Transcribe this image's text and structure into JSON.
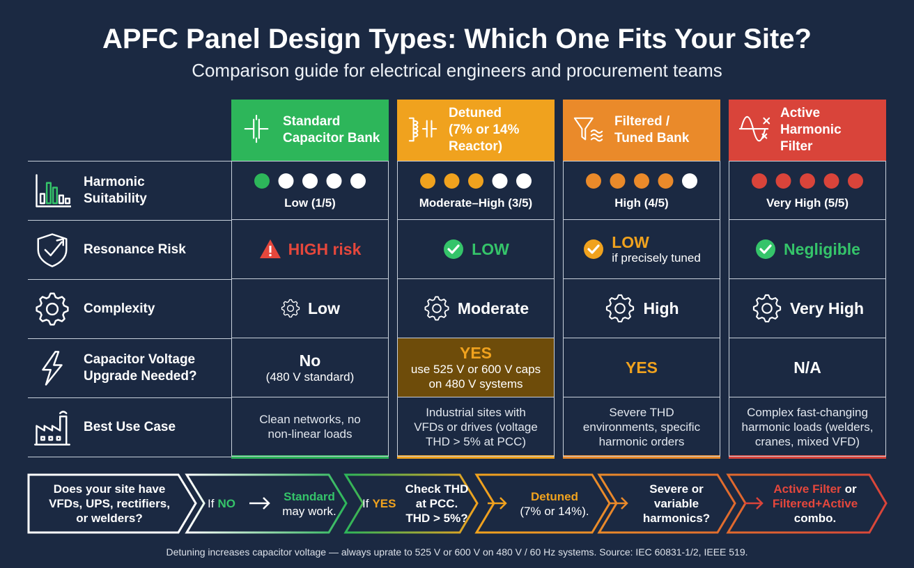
{
  "header": {
    "title": "APFC Panel Design Types: Which One Fits Your Site?",
    "subtitle": "Comparison guide for electrical engineers and procurement teams"
  },
  "columns": [
    {
      "lines": [
        "Standard",
        "Capacitor Bank"
      ],
      "icon": "capacitor",
      "color": "#2db65a"
    },
    {
      "lines": [
        "Detuned",
        "(7% or 14%",
        "Reactor)"
      ],
      "icon": "reactor",
      "color": "#f0a21e"
    },
    {
      "lines": [
        "Filtered /",
        "Tuned Bank"
      ],
      "icon": "funnel",
      "color": "#ea8a2a"
    },
    {
      "lines": [
        "Active",
        "Harmonic",
        "Filter"
      ],
      "icon": "wave",
      "color": "#d9443a"
    }
  ],
  "rows": [
    {
      "lines": [
        "Harmonic",
        "Suitability"
      ],
      "icon": "bars",
      "cells": [
        {
          "filled": 1,
          "total": 5,
          "label": "Low (1/5)"
        },
        {
          "filled": 3,
          "total": 5,
          "label": "Moderate–High (3/5)"
        },
        {
          "filled": 4,
          "total": 5,
          "label": "High (4/5)"
        },
        {
          "filled": 5,
          "total": 5,
          "label": "Very High (5/5)"
        }
      ]
    },
    {
      "lines": [
        "Resonance Risk"
      ],
      "icon": "shield",
      "cells": [
        {
          "text": "HIGH risk",
          "icon": "warning",
          "color": "#e5473c"
        },
        {
          "text": "LOW",
          "icon": "check",
          "color": "#35c46a"
        },
        {
          "text": "LOW",
          "note": [
            "if precisely tuned"
          ],
          "icon": "check",
          "color": "#f0a21e"
        },
        {
          "text": "Negligible",
          "icon": "check",
          "color": "#35c46a"
        }
      ]
    },
    {
      "lines": [
        "Complexity"
      ],
      "icon": "gear",
      "cells": [
        {
          "text": "Low",
          "icon": "gear",
          "size": "small"
        },
        {
          "text": "Moderate",
          "icon": "gear"
        },
        {
          "text": "High",
          "icon": "gear",
          "size": "large"
        },
        {
          "text": "Very High",
          "icon": "gear",
          "size": "large"
        }
      ]
    },
    {
      "lines": [
        "Capacitor Voltage",
        "Upgrade Needed?"
      ],
      "icon": "bolt",
      "cells": [
        {
          "text": "No",
          "note": [
            "(480 V standard)"
          ]
        },
        {
          "text": "YES",
          "note": [
            "use 525 V or 600 V caps",
            "on 480 V systems"
          ],
          "color": "#f0a21e",
          "highlight": "#6e4c0a"
        },
        {
          "text": "YES",
          "color": "#f0a21e"
        },
        {
          "text": "N/A"
        }
      ]
    },
    {
      "lines": [
        "Best Use Case"
      ],
      "icon": "factory",
      "cells": [
        {
          "note": [
            "Clean networks, no",
            "non-linear loads"
          ]
        },
        {
          "note": [
            "Industrial sites with",
            "VFDs or drives (voltage",
            "THD > 5% at PCC)"
          ]
        },
        {
          "note": [
            "Severe THD",
            "environments, specific",
            "harmonic orders"
          ]
        },
        {
          "note": [
            "Complex fast-changing",
            "harmonic loads (welders,",
            "cranes, mixed VFD)"
          ]
        }
      ]
    }
  ],
  "flow": {
    "question": [
      "Does your site have",
      "VFDs, UPS, rectifiers,",
      "or welders?"
    ],
    "if_no": {
      "lead": "If",
      "key": "NO"
    },
    "standard": {
      "key": "Standard",
      "text": "may work."
    },
    "if_yes": {
      "lead": "If",
      "key": "YES"
    },
    "check": [
      "Check THD",
      "at PCC.",
      "THD > 5%?"
    ],
    "detuned": {
      "key": "Detuned",
      "text": "(7% or 14%)."
    },
    "severe": [
      "Severe or",
      "variable",
      "harmonics?"
    ],
    "active": {
      "key": "Active Filter",
      "mid": "or",
      "key2": "Filtered+Active",
      "text": "combo."
    }
  },
  "footer": "Detuning increases capacitor voltage — always uprate to 525 V or 600 V on 480 V / 60 Hz systems. Source: IEC 60831-1/2, IEEE 519."
}
